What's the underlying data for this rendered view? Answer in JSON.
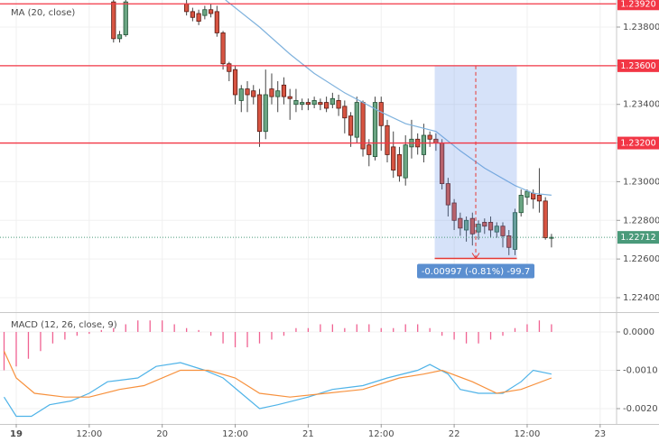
{
  "chart_data": [
    {
      "type": "candlestick",
      "xlim": [
        -2.67,
        98.7
      ],
      "ylim": [
        1.2233,
        1.2394
      ],
      "yticks": [
        {
          "value": 1.224,
          "label": "1.22400"
        },
        {
          "value": 1.226,
          "label": "1.22600"
        },
        {
          "value": 1.228,
          "label": "1.22800"
        },
        {
          "value": 1.23,
          "label": "1.23000"
        },
        {
          "value": 1.232,
          "label": "1.23200"
        },
        {
          "value": 1.234,
          "label": "1.23400"
        },
        {
          "value": 1.236,
          "label": "1.23600"
        },
        {
          "value": 1.238,
          "label": "1.23800"
        }
      ],
      "grid": true,
      "up_color": "#6ba583",
      "down_color": "#d75442",
      "x": [
        16,
        17,
        18,
        28,
        29,
        30,
        31,
        32,
        33,
        34,
        35,
        36,
        37,
        38,
        39,
        40,
        41,
        42,
        43,
        44,
        45,
        46,
        47,
        48,
        49,
        50,
        51,
        52,
        53,
        54,
        55,
        56,
        57,
        58,
        59,
        60,
        61,
        62,
        63,
        64,
        65,
        66,
        67,
        68,
        69,
        70,
        71,
        72,
        73,
        74,
        75,
        76,
        77,
        78,
        79,
        80,
        81,
        82,
        83,
        84,
        85,
        86,
        87,
        88
      ],
      "open": [
        1.2393,
        1.2374,
        1.2376,
        1.2392,
        1.2388,
        1.2387,
        1.2386,
        1.2389,
        1.2388,
        1.2377,
        1.2361,
        1.2358,
        1.2342,
        1.2348,
        1.2347,
        1.2345,
        1.2326,
        1.2348,
        1.2344,
        1.235,
        1.2344,
        1.234,
        1.234,
        1.2341,
        1.234,
        1.2341,
        1.2341,
        1.234,
        1.2342,
        1.2339,
        1.2334,
        1.2323,
        1.2341,
        1.2319,
        1.2313,
        1.2341,
        1.2329,
        1.2318,
        1.2314,
        1.2302,
        1.2318,
        1.2322,
        1.2314,
        1.2324,
        1.2322,
        1.232,
        1.2299,
        1.2289,
        1.2281,
        1.2275,
        1.2281,
        1.2274,
        1.2279,
        1.2279,
        1.2274,
        1.2277,
        1.2272,
        1.2265,
        1.2284,
        1.2292,
        1.2294,
        1.2293,
        1.229,
        1.2271
      ],
      "high": [
        1.2396,
        1.2378,
        1.2396,
        1.2394,
        1.239,
        1.2389,
        1.2391,
        1.2392,
        1.2391,
        1.2378,
        1.2362,
        1.236,
        1.235,
        1.2352,
        1.235,
        1.2348,
        1.2358,
        1.2356,
        1.2352,
        1.2354,
        1.2348,
        1.2348,
        1.2343,
        1.2343,
        1.2344,
        1.2343,
        1.2344,
        1.2346,
        1.2345,
        1.2342,
        1.2336,
        1.2344,
        1.2342,
        1.2322,
        1.2344,
        1.2344,
        1.2332,
        1.2326,
        1.2318,
        1.2324,
        1.2332,
        1.2325,
        1.233,
        1.2326,
        1.2325,
        1.2322,
        1.2302,
        1.2291,
        1.2284,
        1.2282,
        1.2284,
        1.228,
        1.2281,
        1.2282,
        1.2279,
        1.2279,
        1.2275,
        1.2286,
        1.2296,
        1.2296,
        1.2296,
        1.2307,
        1.2292,
        1.2273
      ],
      "low": [
        1.2372,
        1.2372,
        1.2375,
        1.2386,
        1.2383,
        1.2381,
        1.2384,
        1.2385,
        1.2375,
        1.2358,
        1.2352,
        1.234,
        1.2336,
        1.2336,
        1.234,
        1.2318,
        1.2322,
        1.234,
        1.2336,
        1.234,
        1.2332,
        1.2336,
        1.2337,
        1.2337,
        1.2338,
        1.2337,
        1.2336,
        1.2338,
        1.2334,
        1.2325,
        1.2318,
        1.232,
        1.2313,
        1.2308,
        1.2311,
        1.2316,
        1.231,
        1.2302,
        1.23,
        1.2298,
        1.2312,
        1.2314,
        1.231,
        1.2318,
        1.2316,
        1.2296,
        1.2282,
        1.2275,
        1.2272,
        1.2269,
        1.2267,
        1.227,
        1.2273,
        1.2271,
        1.2271,
        1.2266,
        1.2262,
        1.2262,
        1.2282,
        1.2288,
        1.2286,
        1.2284,
        1.227,
        1.2266
      ],
      "close": [
        1.2374,
        1.2376,
        1.2393,
        1.2388,
        1.2385,
        1.2383,
        1.2389,
        1.2387,
        1.2377,
        1.2361,
        1.2357,
        1.2345,
        1.2348,
        1.2345,
        1.2344,
        1.2326,
        1.2345,
        1.2344,
        1.2347,
        1.2344,
        1.2343,
        1.2342,
        1.2341,
        1.234,
        1.2342,
        1.234,
        1.2338,
        1.2343,
        1.2338,
        1.2333,
        1.2324,
        1.2341,
        1.2317,
        1.2314,
        1.2341,
        1.2329,
        1.2314,
        1.2306,
        1.2303,
        1.2319,
        1.2322,
        1.2318,
        1.2324,
        1.2322,
        1.232,
        1.2299,
        1.2288,
        1.228,
        1.2276,
        1.228,
        1.2273,
        1.2278,
        1.2277,
        1.2275,
        1.2277,
        1.2272,
        1.2266,
        1.2284,
        1.2293,
        1.2295,
        1.2291,
        1.229,
        1.2271,
        1.22712
      ],
      "series": [
        {
          "name": "MA (20, close)",
          "color": "#7fb2dd",
          "x": [
            34.4,
            40,
            45,
            49,
            54,
            60,
            64,
            69,
            73,
            77,
            82,
            85,
            88
          ],
          "values": [
            1.2394,
            1.238,
            1.2366,
            1.2356,
            1.2346,
            1.2336,
            1.233,
            1.2326,
            1.2316,
            1.2307,
            1.2298,
            1.2294,
            1.2293
          ]
        }
      ],
      "price_lines": [
        {
          "value": 1.2392,
          "label": "1.23920"
        },
        {
          "value": 1.236,
          "label": "1.23600"
        },
        {
          "value": 1.232,
          "label": "1.23200"
        }
      ],
      "price_line_color": "#f23645",
      "last_price": {
        "value": 1.22712,
        "label": "1.22712",
        "color": "#4a9a7a"
      },
      "measure": {
        "x": [
          68.8,
          82.3
        ],
        "y": [
          1.236,
          1.22603
        ],
        "label": "-0.00997 (-0.81%) -99.7"
      }
    },
    {
      "type": "macd",
      "title": "MACD (12, 26, close, 9)",
      "xlim": [
        -2.67,
        98.7
      ],
      "ylim": [
        -0.0024,
        0.00047
      ],
      "yticks": [
        {
          "value": -0.002,
          "label": "-0.0020"
        },
        {
          "value": -0.001,
          "label": "-0.0010"
        },
        {
          "value": 0,
          "label": "0.0000"
        }
      ],
      "xticks": [
        {
          "value": 0,
          "label": "19"
        },
        {
          "value": 12,
          "label": "12:00"
        },
        {
          "value": 24,
          "label": "20"
        },
        {
          "value": 36,
          "label": "12:00"
        },
        {
          "value": 48,
          "label": "21"
        },
        {
          "value": 60,
          "label": "12:00"
        },
        {
          "value": 72,
          "label": "22"
        },
        {
          "value": 84,
          "label": "12:00"
        },
        {
          "value": 96,
          "label": "23"
        }
      ],
      "histogram": {
        "color": "#f06292",
        "x": [
          -2,
          0,
          2,
          4,
          6,
          8,
          10,
          12,
          14,
          16,
          18,
          20,
          22,
          24,
          26,
          28,
          30,
          32,
          34,
          36,
          38,
          40,
          42,
          44,
          46,
          48,
          50,
          52,
          54,
          56,
          58,
          60,
          62,
          64,
          66,
          68,
          70,
          72,
          74,
          76,
          78,
          80,
          82,
          84,
          86,
          88
        ],
        "values": [
          -0.001,
          -0.0009,
          -0.0007,
          -0.0005,
          -0.0003,
          -0.0002,
          -0.0001,
          -5e-05,
          5e-05,
          0.0001,
          0.0002,
          0.0003,
          0.0003,
          0.0003,
          0.0002,
          0.0001,
          5e-05,
          -0.0001,
          -0.0003,
          -0.0004,
          -0.0004,
          -0.0003,
          -0.0002,
          -0.0001,
          0.0001,
          0.0001,
          0.0002,
          0.0002,
          0.0001,
          0.0002,
          0.0002,
          0.0001,
          0.0001,
          0.0002,
          0.0002,
          0.0001,
          -0.0001,
          -0.0002,
          -0.0003,
          -0.0003,
          -0.0002,
          -0.0001,
          0.0001,
          0.0002,
          0.0003,
          0.0002
        ]
      },
      "series": [
        {
          "color": "#4fb3e8",
          "x": [
            -2,
            0,
            2.5,
            5.5,
            9,
            12,
            15,
            20,
            23,
            27,
            31,
            34,
            37,
            40,
            43,
            48,
            52,
            57,
            61,
            66,
            68,
            71,
            73,
            76,
            80,
            83,
            85,
            88
          ],
          "values": [
            -0.0017,
            -0.0022,
            -0.0022,
            -0.0019,
            -0.0018,
            -0.0016,
            -0.0013,
            -0.0012,
            -0.0009,
            -0.0008,
            -0.001,
            -0.0012,
            -0.0016,
            -0.002,
            -0.0019,
            -0.0017,
            -0.0015,
            -0.0014,
            -0.0012,
            -0.001,
            -0.00085,
            -0.0011,
            -0.0015,
            -0.0016,
            -0.0016,
            -0.0013,
            -0.001,
            -0.0011
          ]
        },
        {
          "color": "#f7913d",
          "x": [
            -2,
            0,
            3,
            8,
            12,
            17,
            21,
            27,
            31.6,
            36,
            40,
            45,
            51,
            57,
            63,
            67,
            70,
            75,
            79,
            83,
            88
          ],
          "values": [
            -0.0005,
            -0.0012,
            -0.0016,
            -0.0017,
            -0.0017,
            -0.0015,
            -0.0014,
            -0.001,
            -0.001,
            -0.0012,
            -0.0016,
            -0.0017,
            -0.0016,
            -0.0015,
            -0.0012,
            -0.0011,
            -0.001,
            -0.0013,
            -0.0016,
            -0.0015,
            -0.0012
          ]
        }
      ]
    }
  ]
}
